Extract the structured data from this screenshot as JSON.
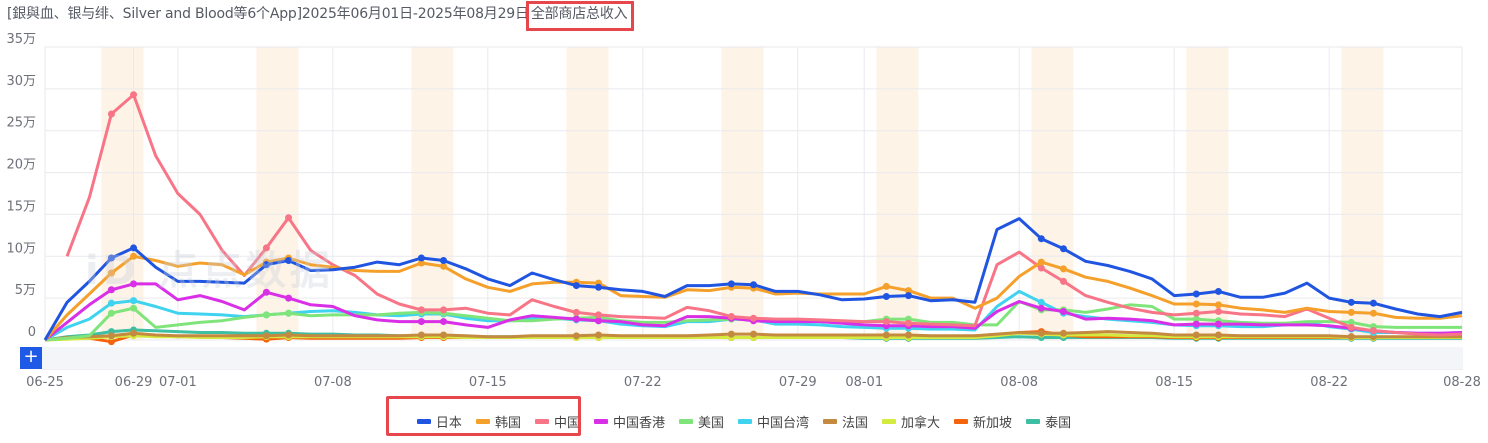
{
  "title": {
    "prefix": "[銀與血、银与绯、Silver and Blood等6个App]2025年06月01日-2025年08月29日",
    "highlight": "全部商店总收入"
  },
  "watermark": "iD 点点数据",
  "zoom_button": "+",
  "colors": {
    "highlight_box": "#e8464d",
    "weekend_band": "#fdf3e6",
    "grid": "#e9eaee"
  },
  "legend": [
    {
      "name": "日本",
      "color": "#1f55e0"
    },
    {
      "name": "韩国",
      "color": "#f5a02a"
    },
    {
      "name": "中国",
      "color": "#f77586"
    },
    {
      "name": "中国香港",
      "color": "#d92fe6"
    },
    {
      "name": "美国",
      "color": "#7fe57a"
    },
    {
      "name": "中国台湾",
      "color": "#3fd3ef"
    },
    {
      "name": "法国",
      "color": "#c48a3f"
    },
    {
      "name": "加拿大",
      "color": "#d5ea3f"
    },
    {
      "name": "新加坡",
      "color": "#f5640c"
    },
    {
      "name": "泰国",
      "color": "#3ebea2"
    }
  ],
  "chart_data": {
    "type": "line",
    "title": "[銀與血、银与绯、Silver and Blood等6个App]2025年06月01日-2025年08月29日全部商店总收入",
    "xlabel": "",
    "ylabel": "",
    "ylim": [
      0,
      350000
    ],
    "y_ticks": [
      "0",
      "5万",
      "10万",
      "15万",
      "20万",
      "25万",
      "30万",
      "35万"
    ],
    "x_tick_labels": [
      "06-25",
      "06-29",
      "07-01",
      "07-08",
      "07-15",
      "07-22",
      "07-29",
      "08-01",
      "08-08",
      "08-15",
      "08-22",
      "08-28"
    ],
    "grid": true,
    "legend_position": "bottom",
    "weekend_bands": [
      "06-28",
      "06-29",
      "07-05",
      "07-06",
      "07-12",
      "07-13",
      "07-19",
      "07-20",
      "07-26",
      "07-27",
      "08-02",
      "08-03",
      "08-09",
      "08-10",
      "08-16",
      "08-17",
      "08-23",
      "08-24"
    ],
    "unit": "万",
    "x": [
      "06-25",
      "06-26",
      "06-27",
      "06-28",
      "06-29",
      "06-30",
      "07-01",
      "07-02",
      "07-03",
      "07-04",
      "07-05",
      "07-06",
      "07-07",
      "07-08",
      "07-09",
      "07-10",
      "07-11",
      "07-12",
      "07-13",
      "07-14",
      "07-15",
      "07-16",
      "07-17",
      "07-18",
      "07-19",
      "07-20",
      "07-21",
      "07-22",
      "07-23",
      "07-24",
      "07-25",
      "07-26",
      "07-27",
      "07-28",
      "07-29",
      "07-30",
      "07-31",
      "08-01",
      "08-02",
      "08-03",
      "08-04",
      "08-05",
      "08-06",
      "08-07",
      "08-08",
      "08-09",
      "08-10",
      "08-11",
      "08-12",
      "08-13",
      "08-14",
      "08-15",
      "08-16",
      "08-17",
      "08-18",
      "08-19",
      "08-20",
      "08-21",
      "08-22",
      "08-23",
      "08-24",
      "08-25",
      "08-26",
      "08-27",
      "08-28"
    ],
    "series": [
      {
        "name": "日本",
        "values": [
          0,
          4.5,
          7,
          9.8,
          11,
          8.7,
          7,
          7,
          6.9,
          6.8,
          9,
          9.5,
          8.3,
          8.4,
          8.7,
          9.3,
          9.0,
          9.8,
          9.5,
          8.5,
          7.3,
          6.5,
          8.0,
          7.2,
          6.5,
          6.3,
          6.0,
          5.8,
          5.2,
          6.5,
          6.5,
          6.7,
          6.6,
          5.8,
          5.8,
          5.4,
          4.8,
          4.9,
          5.2,
          5.3,
          4.7,
          4.8,
          4.5,
          13.2,
          14.5,
          12.1,
          10.9,
          9.4,
          8.9,
          8.2,
          7.3,
          5.3,
          5.5,
          5.8,
          5.1,
          5.1,
          5.6,
          6.8,
          5.0,
          4.5,
          4.4,
          3.7,
          3.1,
          2.8,
          3.3
        ]
      },
      {
        "name": "韩国",
        "values": [
          0,
          3,
          5.5,
          8,
          10,
          9.5,
          8.8,
          9.2,
          9.0,
          7.8,
          9.3,
          9.8,
          9.0,
          8.7,
          8.3,
          8.2,
          8.2,
          9.2,
          8.8,
          7.3,
          6.3,
          5.8,
          6.7,
          6.9,
          6.9,
          6.8,
          5.3,
          5.2,
          5.1,
          6.0,
          5.9,
          6.3,
          6.2,
          5.5,
          5.6,
          5.5,
          5.5,
          5.5,
          6.4,
          5.9,
          5.0,
          5.0,
          3.8,
          5.0,
          7.6,
          9.3,
          8.5,
          7.5,
          7.0,
          6.2,
          5.3,
          4.3,
          4.3,
          4.2,
          3.8,
          3.6,
          3.3,
          3.8,
          3.4,
          3.3,
          3.2,
          2.7,
          2.6,
          2.6,
          2.9
        ]
      },
      {
        "name": "中国",
        "values": [
          null,
          10,
          17,
          27,
          29.3,
          22,
          17.5,
          15,
          10.7,
          7.7,
          11,
          14.6,
          10.7,
          9.0,
          7.7,
          5.5,
          4.3,
          3.6,
          3.6,
          3.8,
          3.2,
          3.0,
          4.8,
          4.0,
          3.3,
          3.0,
          2.8,
          2.7,
          2.6,
          3.9,
          3.5,
          2.8,
          2.6,
          2.5,
          2.5,
          2.4,
          2.3,
          2.2,
          2.2,
          2.0,
          1.9,
          1.8,
          1.7,
          9.0,
          10.5,
          8.6,
          7.0,
          5.3,
          4.5,
          3.8,
          3.3,
          3.0,
          3.2,
          3.4,
          3.1,
          3.0,
          2.8,
          3.7,
          2.6,
          1.5,
          1.1,
          0.9,
          0.7,
          0.6,
          0.7
        ]
      },
      {
        "name": "中国香港",
        "values": [
          0,
          2.1,
          4.2,
          6.0,
          6.7,
          6.7,
          4.8,
          5.3,
          4.6,
          3.6,
          5.7,
          5.0,
          4.2,
          4.0,
          2.9,
          2.4,
          2.2,
          2.2,
          2.2,
          1.8,
          1.5,
          2.4,
          2.9,
          2.7,
          2.5,
          2.3,
          2.2,
          1.8,
          1.7,
          2.8,
          2.8,
          2.6,
          2.3,
          2.2,
          2.2,
          2.2,
          2.0,
          1.8,
          1.7,
          1.7,
          1.6,
          1.6,
          1.4,
          3.4,
          4.6,
          3.8,
          3.4,
          2.5,
          2.6,
          2.5,
          2.3,
          1.8,
          1.9,
          1.9,
          1.9,
          1.8,
          1.8,
          1.8,
          1.7,
          1.4,
          1.1,
          0.9,
          0.8,
          0.8,
          0.9
        ]
      },
      {
        "name": "美国",
        "values": [
          0,
          0.2,
          0.5,
          3.2,
          3.8,
          1.5,
          1.8,
          2.1,
          2.3,
          2.7,
          3.0,
          3.2,
          2.9,
          3.0,
          3.0,
          3.0,
          3.2,
          3.3,
          3.2,
          2.9,
          2.6,
          2.3,
          2.3,
          2.5,
          2.6,
          2.7,
          2.3,
          2.1,
          2.1,
          2.3,
          2.4,
          2.5,
          2.5,
          2.4,
          2.3,
          2.2,
          2.1,
          2.2,
          2.5,
          2.5,
          2.1,
          2.1,
          1.8,
          1.8,
          4.6,
          3.6,
          3.6,
          3.3,
          3.7,
          4.2,
          4.0,
          2.5,
          2.5,
          2.3,
          2.1,
          2.0,
          2.0,
          2.2,
          2.2,
          2.1,
          1.6,
          1.5,
          1.5,
          1.5,
          1.5
        ]
      },
      {
        "name": "中国台湾",
        "values": [
          0,
          1.5,
          2.5,
          4.4,
          4.7,
          4.0,
          3.2,
          3.1,
          3.0,
          2.8,
          3.0,
          3.2,
          3.4,
          3.5,
          3.3,
          3.0,
          2.9,
          3.1,
          3.1,
          2.6,
          2.3,
          2.3,
          2.6,
          2.6,
          2.4,
          2.3,
          1.9,
          1.7,
          1.6,
          2.2,
          2.2,
          2.5,
          2.4,
          1.9,
          1.9,
          1.8,
          1.6,
          1.5,
          1.4,
          1.4,
          1.3,
          1.3,
          1.2,
          4.0,
          5.8,
          4.5,
          3.2,
          2.8,
          2.5,
          2.3,
          2.1,
          1.8,
          1.7,
          1.7,
          1.6,
          1.6,
          1.8,
          2.1,
          1.6,
          1.3,
          0.9,
          0.9,
          0.8,
          0.8,
          0.9
        ]
      },
      {
        "name": "法国",
        "values": [
          0,
          0.3,
          0.4,
          0.5,
          0.8,
          0.6,
          0.5,
          0.5,
          0.5,
          0.5,
          0.5,
          0.6,
          0.5,
          0.5,
          0.5,
          0.5,
          0.5,
          0.6,
          0.6,
          0.5,
          0.4,
          0.4,
          0.5,
          0.5,
          0.5,
          0.6,
          0.5,
          0.5,
          0.5,
          0.5,
          0.6,
          0.7,
          0.7,
          0.6,
          0.6,
          0.6,
          0.6,
          0.6,
          0.6,
          0.6,
          0.5,
          0.5,
          0.5,
          0.7,
          0.9,
          0.8,
          0.8,
          0.9,
          1.0,
          0.9,
          0.8,
          0.6,
          0.6,
          0.6,
          0.5,
          0.5,
          0.5,
          0.5,
          0.5,
          0.4,
          0.4,
          0.4,
          0.4,
          0.4,
          0.4
        ]
      },
      {
        "name": "加拿大",
        "values": [
          0,
          0.1,
          0.2,
          0.4,
          0.5,
          0.4,
          0.4,
          0.3,
          0.3,
          0.3,
          0.4,
          0.4,
          0.4,
          0.4,
          0.4,
          0.4,
          0.4,
          0.4,
          0.4,
          0.3,
          0.3,
          0.3,
          0.3,
          0.3,
          0.3,
          0.3,
          0.3,
          0.3,
          0.3,
          0.3,
          0.3,
          0.3,
          0.3,
          0.3,
          0.3,
          0.3,
          0.3,
          0.3,
          0.3,
          0.3,
          0.3,
          0.3,
          0.3,
          0.5,
          0.8,
          0.7,
          0.6,
          0.6,
          0.6,
          0.5,
          0.5,
          0.4,
          0.4,
          0.4,
          0.4,
          0.4,
          0.4,
          0.4,
          0.4,
          0.3,
          0.3,
          0.3,
          0.3,
          0.3,
          0.3
        ]
      },
      {
        "name": "新加坡",
        "values": [
          0,
          0.2,
          0.2,
          -0.2,
          0.6,
          0.5,
          0.4,
          0.4,
          0.3,
          0.2,
          0.1,
          0.3,
          0.2,
          0.2,
          0.2,
          0.2,
          0.2,
          0.3,
          0.3,
          0.3,
          0.3,
          0.3,
          0.3,
          0.3,
          0.3,
          0.3,
          0.3,
          0.3,
          0.3,
          0.3,
          0.3,
          0.3,
          0.3,
          0.3,
          0.3,
          0.3,
          0.3,
          0.3,
          0.3,
          0.3,
          0.3,
          0.3,
          0.3,
          0.6,
          0.9,
          1.0,
          0.6,
          0.4,
          0.4,
          0.4,
          0.4,
          0.3,
          0.3,
          0.3,
          0.3,
          0.3,
          0.3,
          0.3,
          0.3,
          0.3,
          0.3,
          0.3,
          0.3,
          0.3,
          0.3
        ]
      },
      {
        "name": "泰国",
        "values": [
          0,
          0.4,
          0.6,
          1.0,
          1.2,
          1.1,
          1.0,
          0.9,
          0.9,
          0.8,
          0.8,
          0.8,
          0.7,
          0.7,
          0.6,
          0.6,
          0.5,
          0.5,
          0.5,
          0.4,
          0.4,
          0.4,
          0.4,
          0.4,
          0.4,
          0.4,
          0.3,
          0.3,
          0.3,
          0.3,
          0.3,
          0.3,
          0.3,
          0.3,
          0.3,
          0.3,
          0.3,
          0.2,
          0.2,
          0.2,
          0.2,
          0.2,
          0.2,
          0.3,
          0.4,
          0.3,
          0.3,
          0.3,
          0.3,
          0.3,
          0.3,
          0.2,
          0.2,
          0.2,
          0.2,
          0.2,
          0.2,
          0.2,
          0.2,
          0.2,
          0.2,
          0.2,
          0.2,
          0.2,
          0.2
        ]
      }
    ]
  }
}
